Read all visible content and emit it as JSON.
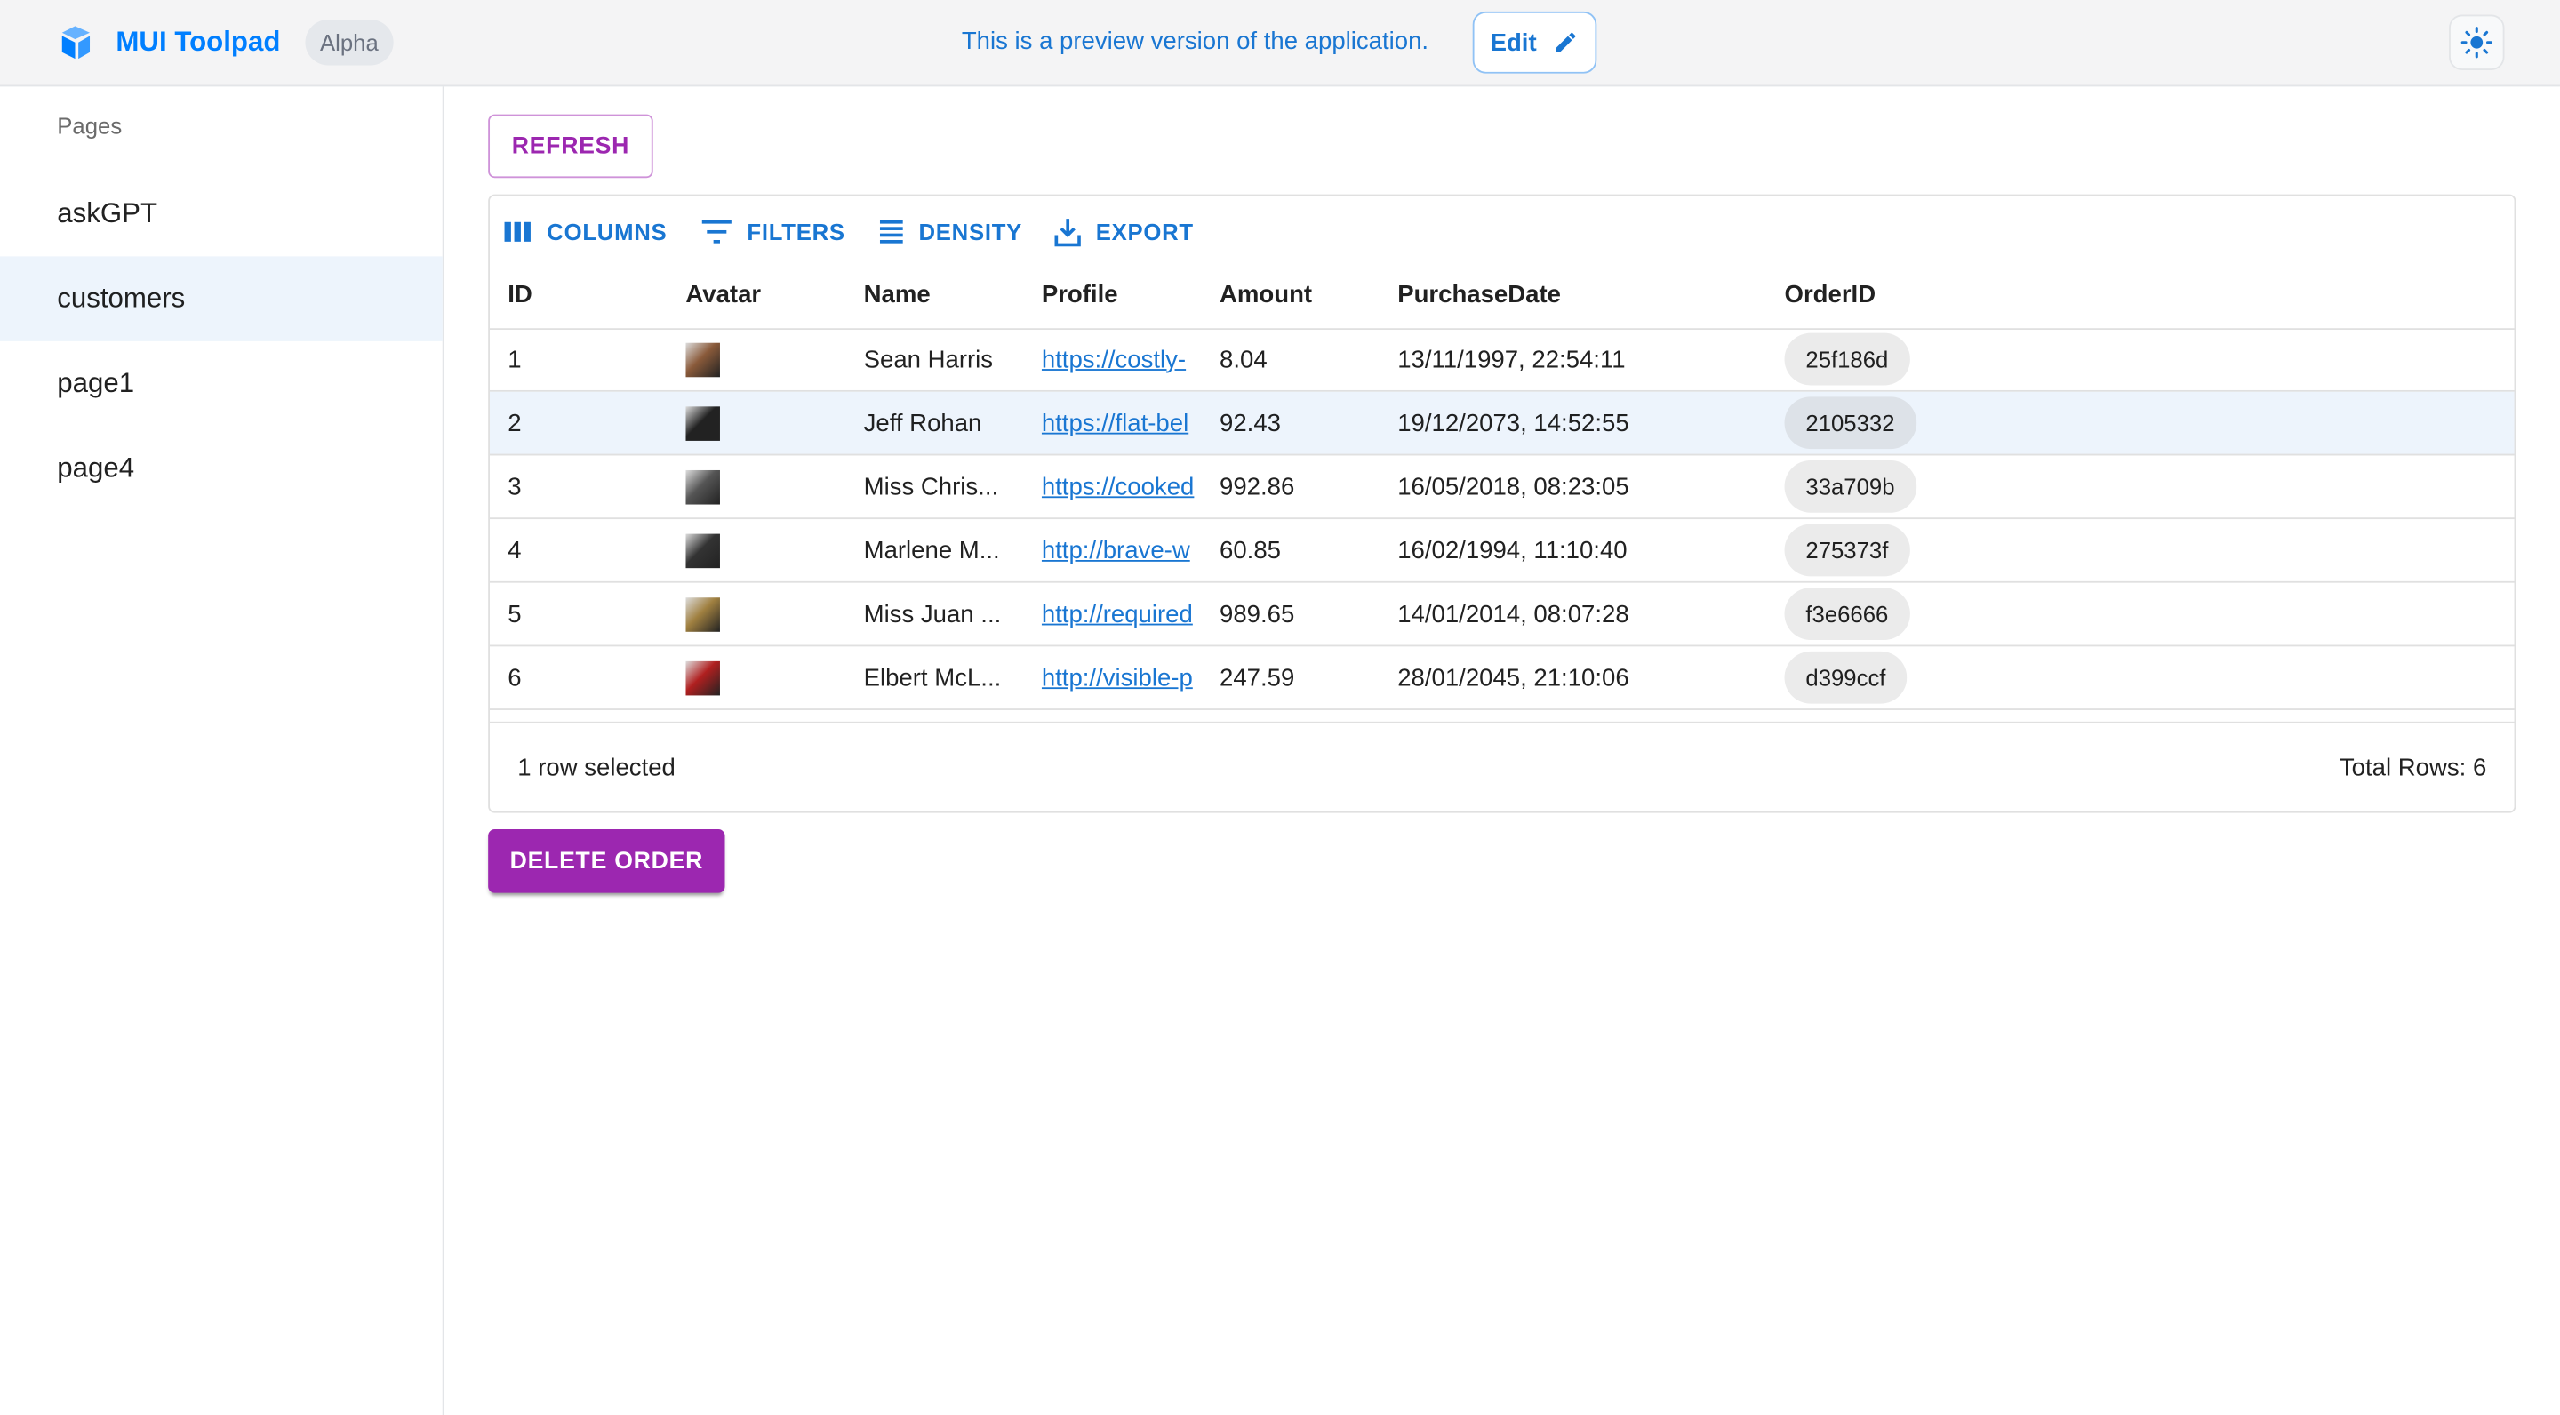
{
  "header": {
    "brand": "MUI Toolpad",
    "badge": "Alpha",
    "preview_text": "This is a preview version of the application.",
    "edit_label": "Edit",
    "theme_icon": "sun-icon",
    "brand_color": "#007fff"
  },
  "sidebar": {
    "section_label": "Pages",
    "items": [
      {
        "label": "askGPT"
      },
      {
        "label": "customers",
        "selected": true
      },
      {
        "label": "page1"
      },
      {
        "label": "page4"
      }
    ]
  },
  "main": {
    "refresh_label": "REFRESH",
    "toolbar": {
      "columns": "COLUMNS",
      "filters": "FILTERS",
      "density": "DENSITY",
      "export": "EXPORT"
    },
    "columns": [
      "ID",
      "Avatar",
      "Name",
      "Profile",
      "Amount",
      "PurchaseDate",
      "OrderID"
    ],
    "rows": [
      {
        "id": "1",
        "avatar": "#8a5a3a",
        "name": "Sean Harris",
        "profile": "https://costly-",
        "amount": "8.04",
        "date": "13/11/1997, 22:54:11",
        "order": "25f186d"
      },
      {
        "id": "2",
        "avatar": "#222222",
        "name": "Jeff Rohan",
        "profile": "https://flat-bel",
        "amount": "92.43",
        "date": "19/12/2073, 14:52:55",
        "order": "2105332",
        "selected": true
      },
      {
        "id": "3",
        "avatar": "#555555",
        "name": "Miss Chris...",
        "profile": "https://cooked",
        "amount": "992.86",
        "date": "16/05/2018, 08:23:05",
        "order": "33a709b"
      },
      {
        "id": "4",
        "avatar": "#333333",
        "name": "Marlene M...",
        "profile": "http://brave-w",
        "amount": "60.85",
        "date": "16/02/1994, 11:10:40",
        "order": "275373f"
      },
      {
        "id": "5",
        "avatar": "#a08040",
        "name": "Miss Juan ...",
        "profile": "http://required",
        "amount": "989.65",
        "date": "14/01/2014, 08:07:28",
        "order": "f3e6666"
      },
      {
        "id": "6",
        "avatar": "#b02020",
        "name": "Elbert McL...",
        "profile": "http://visible-p",
        "amount": "247.59",
        "date": "28/01/2045, 21:10:06",
        "order": "d399ccf"
      }
    ],
    "selected_text": "1 row selected",
    "total_rows": "Total Rows: 6",
    "delete_label": "DELETE ORDER",
    "accent_color": "#9c27b0"
  }
}
